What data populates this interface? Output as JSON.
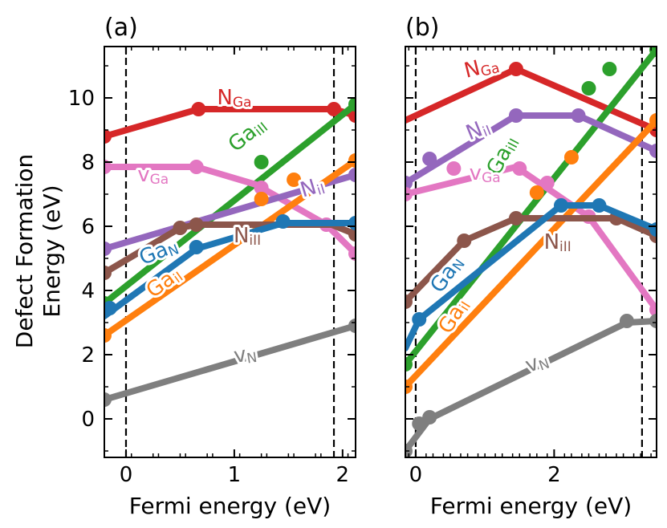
{
  "figure": {
    "ylabel_line1": "Defect Formation",
    "ylabel_line2": "Energy (eV)"
  },
  "chart_data": [
    {
      "type": "line",
      "panel_label": "(a)",
      "xlabel": "Fermi energy (eV)",
      "ylabel": "Defect Formation Energy (eV)",
      "xlim": [
        -0.2,
        2.12
      ],
      "ylim": [
        -1.2,
        11.6
      ],
      "xticks": [
        0,
        1,
        2
      ],
      "yticks": [
        0,
        2,
        4,
        6,
        8,
        10
      ],
      "vlines": [
        0,
        1.92
      ],
      "series": [
        {
          "name": "N_Ga",
          "base": "N",
          "sub": "Ga",
          "color": "#d62728",
          "x": [
            -0.2,
            0.67,
            1.92,
            2.12
          ],
          "y": [
            8.8,
            9.65,
            9.65,
            9.45
          ],
          "markers": [
            [
              -0.2,
              8.8
            ],
            [
              0.67,
              9.65
            ],
            [
              1.92,
              9.65
            ],
            [
              2.12,
              9.45
            ]
          ],
          "label_pos": [
            1.0,
            10.0
          ],
          "label_rot": 0
        },
        {
          "name": "Ga_iII",
          "base": "Ga",
          "sub": "iII",
          "color": "#2ca02c",
          "x": [
            -0.2,
            2.12
          ],
          "y": [
            3.6,
            9.8
          ],
          "markers": [
            [
              -0.2,
              3.6
            ],
            [
              1.25,
              8.0
            ],
            [
              2.12,
              9.8
            ]
          ],
          "label_pos": [
            1.12,
            8.85
          ],
          "label_rot": -39
        },
        {
          "name": "v_Ga",
          "base": "v",
          "sub": "Ga",
          "color": "#e377c2",
          "x": [
            -0.2,
            0.65,
            1.2,
            1.85,
            2.12
          ],
          "y": [
            7.85,
            7.85,
            7.3,
            6.05,
            5.15
          ],
          "markers": [
            [
              -0.2,
              7.85
            ],
            [
              0.65,
              7.85
            ],
            [
              1.25,
              7.2
            ],
            [
              1.85,
              6.05
            ],
            [
              2.12,
              5.15
            ]
          ],
          "label_pos": [
            0.25,
            7.6
          ],
          "label_rot": 0
        },
        {
          "name": "N_iI",
          "base": "N",
          "sub": "iI",
          "color": "#9467bd",
          "x": [
            -0.2,
            2.12
          ],
          "y": [
            5.3,
            7.6
          ],
          "markers": [
            [
              -0.2,
              5.3
            ],
            [
              2.12,
              7.6
            ]
          ],
          "label_pos": [
            1.72,
            7.2
          ],
          "label_rot": -17
        },
        {
          "name": "Ga_iI",
          "base": "Ga",
          "sub": "iI",
          "color": "#ff7f0e",
          "x": [
            -0.2,
            2.12
          ],
          "y": [
            2.6,
            8.05
          ],
          "markers": [
            [
              -0.2,
              2.6
            ],
            [
              1.25,
              6.85
            ],
            [
              1.55,
              7.45
            ],
            [
              2.12,
              8.05
            ]
          ],
          "label_pos": [
            0.35,
            4.25
          ],
          "label_rot": -36
        },
        {
          "name": "N_iII",
          "base": "N",
          "sub": "iII",
          "color": "#8c564b",
          "x": [
            -0.2,
            0.5,
            0.65,
            1.9,
            2.12
          ],
          "y": [
            4.55,
            5.95,
            6.05,
            6.05,
            5.75
          ],
          "markers": [
            [
              -0.2,
              4.55
            ],
            [
              0.5,
              5.95
            ],
            [
              0.65,
              6.05
            ],
            [
              2.12,
              5.75
            ]
          ],
          "label_pos": [
            1.12,
            5.7
          ],
          "label_rot": 0
        },
        {
          "name": "Ga_N",
          "base": "Ga",
          "sub": "N",
          "color": "#1f77b4",
          "x": [
            -0.2,
            0.65,
            1.45,
            2.12
          ],
          "y": [
            3.2,
            5.3,
            6.1,
            6.1
          ],
          "markers": [
            [
              -0.15,
              3.45
            ],
            [
              0.65,
              5.35
            ],
            [
              1.45,
              6.15
            ],
            [
              2.12,
              6.1
            ]
          ],
          "label_pos": [
            0.3,
            5.2
          ],
          "label_rot": -22
        },
        {
          "name": "v_N",
          "base": "v",
          "sub": "N",
          "color": "#7f7f7f",
          "x": [
            -0.2,
            2.12
          ],
          "y": [
            0.6,
            2.9
          ],
          "markers": [
            [
              -0.2,
              0.6
            ],
            [
              2.12,
              2.9
            ]
          ],
          "label_pos": [
            1.1,
            2.0
          ],
          "label_rot": -9
        }
      ]
    },
    {
      "type": "line",
      "panel_label": "(b)",
      "xlabel": "Fermi energy (eV)",
      "xlim": [
        -0.15,
        3.48
      ],
      "ylim": [
        -1.2,
        11.6
      ],
      "xticks": [
        0,
        2
      ],
      "yticks": [
        0,
        2,
        4,
        6,
        8,
        10
      ],
      "vlines": [
        0,
        3.27
      ],
      "series": [
        {
          "name": "N_Ga",
          "base": "N",
          "sub": "Ga",
          "color": "#d62728",
          "x": [
            -0.15,
            1.45,
            3.48
          ],
          "y": [
            9.3,
            10.9,
            9.0
          ],
          "markers": [
            [
              1.45,
              10.9
            ],
            [
              3.48,
              9.0
            ]
          ],
          "label_pos": [
            0.95,
            10.95
          ],
          "label_rot": -14
        },
        {
          "name": "Ga_iII",
          "base": "Ga",
          "sub": "iII",
          "color": "#2ca02c",
          "x": [
            -0.15,
            3.48
          ],
          "y": [
            1.7,
            11.5
          ],
          "markers": [
            [
              -0.15,
              1.7
            ],
            [
              2.5,
              10.3
            ],
            [
              2.8,
              10.9
            ],
            [
              3.48,
              11.5
            ]
          ],
          "label_pos": [
            1.25,
            8.2
          ],
          "label_rot": -62
        },
        {
          "name": "N_iI",
          "base": "N",
          "sub": "iI",
          "color": "#9467bd",
          "x": [
            -0.15,
            1.45,
            2.35,
            3.48
          ],
          "y": [
            7.35,
            9.45,
            9.45,
            8.35
          ],
          "markers": [
            [
              -0.15,
              7.35
            ],
            [
              0.2,
              8.1
            ],
            [
              1.45,
              9.45
            ],
            [
              2.35,
              9.45
            ],
            [
              3.48,
              8.35
            ]
          ],
          "label_pos": [
            0.9,
            9.0
          ],
          "label_rot": -22
        },
        {
          "name": "v_Ga",
          "base": "v",
          "sub": "Ga",
          "color": "#e377c2",
          "x": [
            -0.15,
            1.45,
            2.5,
            3.48
          ],
          "y": [
            7.0,
            7.85,
            6.3,
            3.4
          ],
          "markers": [
            [
              -0.15,
              7.0
            ],
            [
              0.55,
              7.8
            ],
            [
              1.5,
              7.8
            ],
            [
              1.9,
              7.35
            ],
            [
              2.5,
              6.3
            ],
            [
              3.48,
              3.4
            ]
          ],
          "label_pos": [
            1.0,
            7.65
          ],
          "label_rot": 0
        },
        {
          "name": "Ga_iI",
          "base": "Ga",
          "sub": "iI",
          "color": "#ff7f0e",
          "x": [
            -0.15,
            3.48
          ],
          "y": [
            1.0,
            9.3
          ],
          "markers": [
            [
              -0.15,
              1.0
            ],
            [
              1.75,
              7.05
            ],
            [
              2.25,
              8.15
            ],
            [
              3.48,
              9.3
            ]
          ],
          "label_pos": [
            0.55,
            3.2
          ],
          "label_rot": -58
        },
        {
          "name": "N_iII",
          "base": "N",
          "sub": "iII",
          "color": "#8c564b",
          "x": [
            -0.15,
            0.7,
            1.45,
            2.9,
            3.48
          ],
          "y": [
            3.65,
            5.55,
            6.25,
            6.25,
            5.7
          ],
          "markers": [
            [
              -0.15,
              3.65
            ],
            [
              0.7,
              5.55
            ],
            [
              1.45,
              6.25
            ],
            [
              2.9,
              6.25
            ],
            [
              3.48,
              5.7
            ]
          ],
          "label_pos": [
            2.05,
            5.5
          ],
          "label_rot": 0
        },
        {
          "name": "Ga_N",
          "base": "Ga",
          "sub": "N",
          "color": "#1f77b4",
          "x": [
            -0.15,
            0.05,
            2.1,
            2.65,
            3.48
          ],
          "y": [
            2.2,
            3.1,
            6.65,
            6.65,
            5.9
          ],
          "markers": [
            [
              0.05,
              3.1
            ],
            [
              2.1,
              6.65
            ],
            [
              2.65,
              6.65
            ],
            [
              3.48,
              5.9
            ]
          ],
          "label_pos": [
            0.45,
            4.5
          ],
          "label_rot": -55
        },
        {
          "name": "v_N",
          "base": "v",
          "sub": "N",
          "color": "#7f7f7f",
          "x": [
            -0.15,
            0.2,
            3.05,
            3.48
          ],
          "y": [
            -1.0,
            0.0,
            3.0,
            3.05
          ],
          "markers": [
            [
              -0.15,
              -1.0
            ],
            [
              0.05,
              -0.15
            ],
            [
              0.2,
              0.05
            ],
            [
              3.05,
              3.05
            ],
            [
              3.48,
              3.05
            ]
          ],
          "label_pos": [
            1.75,
            1.75
          ],
          "label_rot": -20
        }
      ]
    }
  ]
}
